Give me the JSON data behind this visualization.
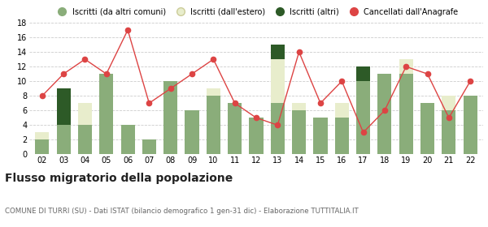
{
  "years": [
    "02",
    "03",
    "04",
    "05",
    "06",
    "07",
    "08",
    "09",
    "10",
    "11",
    "12",
    "13",
    "14",
    "15",
    "16",
    "17",
    "18",
    "19",
    "20",
    "21",
    "22"
  ],
  "iscritti_comuni": [
    2,
    4,
    4,
    11,
    4,
    2,
    10,
    6,
    8,
    7,
    5,
    7,
    6,
    5,
    5,
    10,
    11,
    11,
    7,
    6,
    8
  ],
  "iscritti_estero": [
    1,
    0,
    3,
    0,
    0,
    0,
    0,
    0,
    1,
    0,
    0,
    6,
    1,
    0,
    2,
    0,
    0,
    2,
    0,
    2,
    0
  ],
  "iscritti_altri": [
    0,
    5,
    0,
    0,
    0,
    0,
    0,
    0,
    0,
    0,
    0,
    2,
    0,
    0,
    0,
    2,
    0,
    0,
    0,
    0,
    0
  ],
  "cancellati": [
    8,
    11,
    13,
    11,
    17,
    7,
    9,
    11,
    13,
    7,
    5,
    4,
    14,
    7,
    10,
    3,
    6,
    12,
    11,
    5,
    10
  ],
  "color_comuni": "#8aad7a",
  "color_estero": "#e8edcc",
  "color_altri": "#2d5a27",
  "color_cancellati": "#dd4444",
  "title": "Flusso migratorio della popolazione",
  "subtitle": "COMUNE DI TURRI (SU) - Dati ISTAT (bilancio demografico 1 gen-31 dic) - Elaborazione TUTTITALIA.IT",
  "legend_labels": [
    "Iscritti (da altri comuni)",
    "Iscritti (dall'estero)",
    "Iscritti (altri)",
    "Cancellati dall'Anagrafe"
  ],
  "ylim": [
    0,
    18
  ],
  "yticks": [
    0,
    2,
    4,
    6,
    8,
    10,
    12,
    14,
    16,
    18
  ],
  "bg_color": "#ffffff",
  "grid_color": "#cccccc"
}
